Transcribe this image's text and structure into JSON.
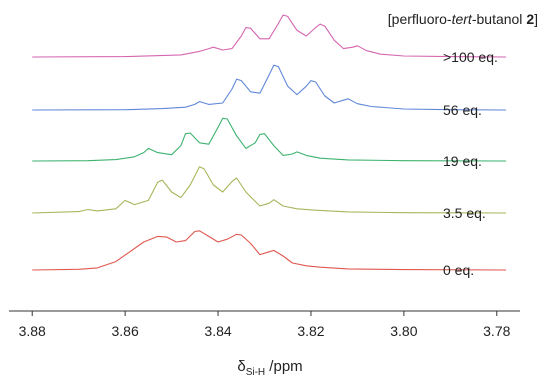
{
  "chart_data": {
    "type": "line",
    "title": "",
    "legend_title": {
      "prefix": "[perfluoro-",
      "italic": "tert",
      "middle": "-butanol ",
      "bold": "2",
      "suffix": "]"
    },
    "xlabel": {
      "symbol": "δ",
      "subscript": "Si-H",
      "unit": " /ppm"
    },
    "ylabel": "",
    "x_reversed": true,
    "xlim": [
      3.885,
      3.775
    ],
    "x_ticks": [
      3.88,
      3.86,
      3.84,
      3.82,
      3.8,
      3.78
    ],
    "x_tick_labels": [
      "3.88",
      "3.86",
      "3.84",
      "3.82",
      "3.80",
      "3.78"
    ],
    "grid": false,
    "series": [
      {
        "name": "0 eq.",
        "color": "#e0574f",
        "points": [
          [
            3.88,
            0.0
          ],
          [
            3.87,
            0.01
          ],
          [
            3.866,
            0.03
          ],
          [
            3.862,
            0.12
          ],
          [
            3.859,
            0.26
          ],
          [
            3.856,
            0.4
          ],
          [
            3.853,
            0.48
          ],
          [
            3.851,
            0.47
          ],
          [
            3.849,
            0.4
          ],
          [
            3.847,
            0.42
          ],
          [
            3.845,
            0.55
          ],
          [
            3.844,
            0.56
          ],
          [
            3.842,
            0.48
          ],
          [
            3.84,
            0.4
          ],
          [
            3.838,
            0.44
          ],
          [
            3.836,
            0.51
          ],
          [
            3.835,
            0.5
          ],
          [
            3.833,
            0.38
          ],
          [
            3.831,
            0.22
          ],
          [
            3.829,
            0.26
          ],
          [
            3.828,
            0.28
          ],
          [
            3.826,
            0.2
          ],
          [
            3.824,
            0.1
          ],
          [
            3.821,
            0.06
          ],
          [
            3.818,
            0.04
          ],
          [
            3.812,
            0.015
          ],
          [
            3.8,
            0.005
          ],
          [
            3.778,
            0.0
          ]
        ]
      },
      {
        "name": "3.5 eq.",
        "color": "#a8b55a",
        "points": [
          [
            3.88,
            0.0
          ],
          [
            3.87,
            0.02
          ],
          [
            3.868,
            0.05
          ],
          [
            3.866,
            0.03
          ],
          [
            3.862,
            0.06
          ],
          [
            3.86,
            0.18
          ],
          [
            3.858,
            0.12
          ],
          [
            3.855,
            0.18
          ],
          [
            3.853,
            0.44
          ],
          [
            3.852,
            0.47
          ],
          [
            3.85,
            0.3
          ],
          [
            3.848,
            0.22
          ],
          [
            3.846,
            0.4
          ],
          [
            3.844,
            0.66
          ],
          [
            3.843,
            0.63
          ],
          [
            3.841,
            0.4
          ],
          [
            3.839,
            0.3
          ],
          [
            3.837,
            0.45
          ],
          [
            3.836,
            0.5
          ],
          [
            3.834,
            0.3
          ],
          [
            3.831,
            0.1
          ],
          [
            3.829,
            0.14
          ],
          [
            3.828,
            0.19
          ],
          [
            3.826,
            0.1
          ],
          [
            3.823,
            0.06
          ],
          [
            3.819,
            0.04
          ],
          [
            3.812,
            0.015
          ],
          [
            3.8,
            0.005
          ],
          [
            3.778,
            0.0
          ]
        ]
      },
      {
        "name": "19 eq.",
        "color": "#3db36f",
        "points": [
          [
            3.88,
            0.0
          ],
          [
            3.868,
            0.005
          ],
          [
            3.862,
            0.02
          ],
          [
            3.858,
            0.06
          ],
          [
            3.856,
            0.12
          ],
          [
            3.855,
            0.18
          ],
          [
            3.853,
            0.12
          ],
          [
            3.85,
            0.09
          ],
          [
            3.848,
            0.22
          ],
          [
            3.847,
            0.39
          ],
          [
            3.846,
            0.4
          ],
          [
            3.844,
            0.26
          ],
          [
            3.842,
            0.24
          ],
          [
            3.84,
            0.48
          ],
          [
            3.839,
            0.61
          ],
          [
            3.838,
            0.6
          ],
          [
            3.836,
            0.36
          ],
          [
            3.834,
            0.18
          ],
          [
            3.832,
            0.26
          ],
          [
            3.831,
            0.38
          ],
          [
            3.83,
            0.39
          ],
          [
            3.828,
            0.22
          ],
          [
            3.826,
            0.08
          ],
          [
            3.824,
            0.1
          ],
          [
            3.823,
            0.13
          ],
          [
            3.821,
            0.08
          ],
          [
            3.818,
            0.04
          ],
          [
            3.812,
            0.015
          ],
          [
            3.8,
            0.005
          ],
          [
            3.778,
            0.0
          ]
        ]
      },
      {
        "name": "56 eq.",
        "color": "#5f87d9",
        "points": [
          [
            3.88,
            0.0
          ],
          [
            3.86,
            0.005
          ],
          [
            3.852,
            0.02
          ],
          [
            3.847,
            0.04
          ],
          [
            3.845,
            0.08
          ],
          [
            3.844,
            0.12
          ],
          [
            3.842,
            0.08
          ],
          [
            3.839,
            0.1
          ],
          [
            3.837,
            0.3
          ],
          [
            3.836,
            0.44
          ],
          [
            3.835,
            0.42
          ],
          [
            3.833,
            0.26
          ],
          [
            3.831,
            0.24
          ],
          [
            3.829,
            0.5
          ],
          [
            3.828,
            0.64
          ],
          [
            3.827,
            0.62
          ],
          [
            3.825,
            0.34
          ],
          [
            3.823,
            0.22
          ],
          [
            3.821,
            0.34
          ],
          [
            3.82,
            0.42
          ],
          [
            3.819,
            0.4
          ],
          [
            3.817,
            0.2
          ],
          [
            3.815,
            0.1
          ],
          [
            3.813,
            0.14
          ],
          [
            3.812,
            0.16
          ],
          [
            3.81,
            0.09
          ],
          [
            3.807,
            0.05
          ],
          [
            3.8,
            0.015
          ],
          [
            3.79,
            0.005
          ],
          [
            3.778,
            0.0
          ]
        ]
      },
      {
        "name": ">100 eq.",
        "color": "#d565b0",
        "points": [
          [
            3.88,
            0.0
          ],
          [
            3.86,
            0.005
          ],
          [
            3.848,
            0.03
          ],
          [
            3.844,
            0.08
          ],
          [
            3.842,
            0.12
          ],
          [
            3.841,
            0.14
          ],
          [
            3.839,
            0.1
          ],
          [
            3.837,
            0.12
          ],
          [
            3.835,
            0.3
          ],
          [
            3.834,
            0.42
          ],
          [
            3.833,
            0.41
          ],
          [
            3.831,
            0.26
          ],
          [
            3.829,
            0.26
          ],
          [
            3.827,
            0.48
          ],
          [
            3.826,
            0.6
          ],
          [
            3.825,
            0.58
          ],
          [
            3.823,
            0.38
          ],
          [
            3.821,
            0.3
          ],
          [
            3.819,
            0.42
          ],
          [
            3.818,
            0.47
          ],
          [
            3.817,
            0.44
          ],
          [
            3.815,
            0.24
          ],
          [
            3.813,
            0.12
          ],
          [
            3.811,
            0.14
          ],
          [
            3.81,
            0.16
          ],
          [
            3.808,
            0.09
          ],
          [
            3.805,
            0.04
          ],
          [
            3.8,
            0.015
          ],
          [
            3.79,
            0.005
          ],
          [
            3.778,
            0.0
          ]
        ]
      }
    ]
  }
}
